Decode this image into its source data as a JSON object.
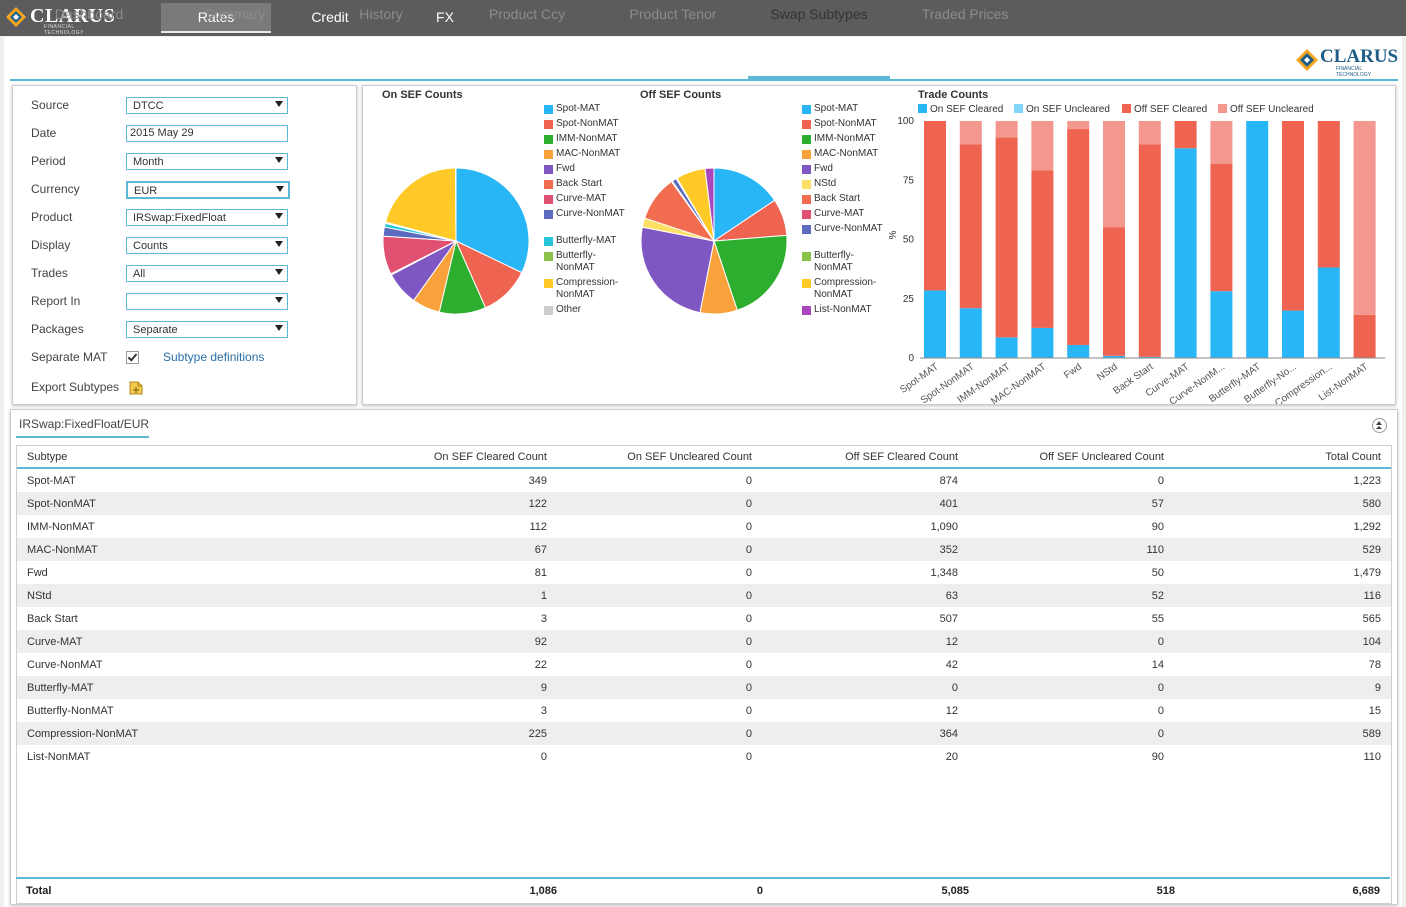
{
  "topnav": {
    "logo": "CLARUS",
    "logo_sub": "FINANCIAL TECHNOLOGY",
    "tabs": [
      "Rates",
      "Credit",
      "FX"
    ],
    "active": "Rates"
  },
  "subnav": {
    "tabs": [
      "Dashboard",
      "Summary",
      "History",
      "Product Ccy",
      "Product Tenor",
      "Swap Subtypes",
      "Traded Prices"
    ],
    "active": "Swap Subtypes",
    "logo": "CLARUS",
    "logo_sub": "FINANCIAL TECHNOLOGY"
  },
  "form": {
    "source": {
      "label": "Source",
      "value": "DTCC"
    },
    "date": {
      "label": "Date",
      "value": "2015 May 29"
    },
    "period": {
      "label": "Period",
      "value": "Month"
    },
    "currency": {
      "label": "Currency",
      "value": "EUR"
    },
    "product": {
      "label": "Product",
      "value": "IRSwap:FixedFloat"
    },
    "display": {
      "label": "Display",
      "value": "Counts"
    },
    "trades": {
      "label": "Trades",
      "value": "All"
    },
    "report_in": {
      "label": "Report In",
      "value": ""
    },
    "packages": {
      "label": "Packages",
      "value": "Separate"
    },
    "separate_mat": {
      "label": "Separate MAT",
      "checked": true
    },
    "subtype_definitions": "Subtype definitions",
    "export_subtypes": "Export Subtypes"
  },
  "chart_data": [
    {
      "type": "pie",
      "title": "On SEF Counts",
      "labels": [
        "Spot-MAT",
        "Spot-NonMAT",
        "IMM-NonMAT",
        "MAC-NonMAT",
        "Fwd",
        "Back Start",
        "Curve-MAT",
        "Curve-NonMAT",
        "Butterfly-MAT",
        "Butterfly-NonMAT",
        "Compression-NonMAT",
        "Other"
      ],
      "values": [
        349,
        122,
        112,
        67,
        81,
        3,
        92,
        22,
        9,
        3,
        225,
        1
      ],
      "colors": [
        "#29b6f6",
        "#ef6351",
        "#2eae2e",
        "#f9a23c",
        "#7e57c2",
        "#f26c4f",
        "#e05070",
        "#5c6bc0",
        "#26c6da",
        "#8bc34a",
        "#ffc928",
        "#cccccc"
      ]
    },
    {
      "type": "pie",
      "title": "Off SEF Counts",
      "labels": [
        "Spot-MAT",
        "Spot-NonMAT",
        "IMM-NonMAT",
        "MAC-NonMAT",
        "Fwd",
        "NStd",
        "Back Start",
        "Curve-MAT",
        "Curve-NonMAT",
        "Butterfly-NonMAT",
        "Compression-NonMAT",
        "List-NonMAT"
      ],
      "values": [
        874,
        458,
        1180,
        462,
        1398,
        115,
        562,
        12,
        56,
        12,
        364,
        110
      ],
      "colors": [
        "#29b6f6",
        "#ef6351",
        "#2eae2e",
        "#f9a23c",
        "#7e57c2",
        "#ffe066",
        "#f26c4f",
        "#e05070",
        "#5c6bc0",
        "#8bc34a",
        "#ffc928",
        "#ab47bc"
      ]
    },
    {
      "type": "bar",
      "stacked": true,
      "title": "Trade Counts",
      "categories": [
        "Spot-MAT",
        "Spot-NonMAT",
        "IMM-NonMAT",
        "MAC-NonMAT",
        "Fwd",
        "NStd",
        "Back Start",
        "Curve-MAT",
        "Curve-NonM...",
        "Butterfly-MAT",
        "Butterfly-No...",
        "Compression...",
        "List-NonMAT"
      ],
      "series": [
        {
          "name": "On SEF Cleared",
          "color": "#29b6f6",
          "values": [
            28.5,
            21.0,
            8.7,
            12.7,
            5.5,
            0.9,
            0.5,
            88.5,
            28.2,
            100,
            20.0,
            38.2,
            0
          ]
        },
        {
          "name": "On SEF Uncleared",
          "color": "#81d4fa",
          "values": [
            0,
            0,
            0,
            0,
            0,
            0,
            0,
            0,
            0,
            0,
            0,
            0,
            0
          ]
        },
        {
          "name": "Off SEF Cleared",
          "color": "#ef6351",
          "values": [
            71.5,
            69.1,
            84.4,
            66.5,
            91.1,
            54.3,
            89.7,
            11.5,
            53.8,
            0,
            80.0,
            61.8,
            18.2
          ]
        },
        {
          "name": "Off SEF Uncleared",
          "color": "#f4978e",
          "values": [
            0,
            9.9,
            6.9,
            20.8,
            3.4,
            44.8,
            9.8,
            0,
            18.0,
            0,
            0,
            0,
            81.8
          ]
        }
      ],
      "ylabel": "%",
      "ylim": [
        0,
        100
      ],
      "yticks": [
        0,
        25,
        50,
        75,
        100
      ]
    }
  ],
  "results": {
    "title": "IRSwap:FixedFloat/EUR",
    "columns": [
      "Subtype",
      "On SEF Cleared Count",
      "On SEF Uncleared Count",
      "Off SEF Cleared Count",
      "Off SEF Uncleared Count",
      "Total Count"
    ],
    "rows": [
      [
        "Spot-MAT",
        "349",
        "0",
        "874",
        "0",
        "1,223"
      ],
      [
        "Spot-NonMAT",
        "122",
        "0",
        "401",
        "57",
        "580"
      ],
      [
        "IMM-NonMAT",
        "112",
        "0",
        "1,090",
        "90",
        "1,292"
      ],
      [
        "MAC-NonMAT",
        "67",
        "0",
        "352",
        "110",
        "529"
      ],
      [
        "Fwd",
        "81",
        "0",
        "1,348",
        "50",
        "1,479"
      ],
      [
        "NStd",
        "1",
        "0",
        "63",
        "52",
        "116"
      ],
      [
        "Back Start",
        "3",
        "0",
        "507",
        "55",
        "565"
      ],
      [
        "Curve-MAT",
        "92",
        "0",
        "12",
        "0",
        "104"
      ],
      [
        "Curve-NonMAT",
        "22",
        "0",
        "42",
        "14",
        "78"
      ],
      [
        "Butterfly-MAT",
        "9",
        "0",
        "0",
        "0",
        "9"
      ],
      [
        "Butterfly-NonMAT",
        "3",
        "0",
        "12",
        "0",
        "15"
      ],
      [
        "Compression-NonMAT",
        "225",
        "0",
        "364",
        "0",
        "589"
      ],
      [
        "List-NonMAT",
        "0",
        "0",
        "20",
        "90",
        "110"
      ]
    ],
    "total": [
      "Total",
      "1,086",
      "0",
      "5,085",
      "518",
      "6,689"
    ]
  }
}
